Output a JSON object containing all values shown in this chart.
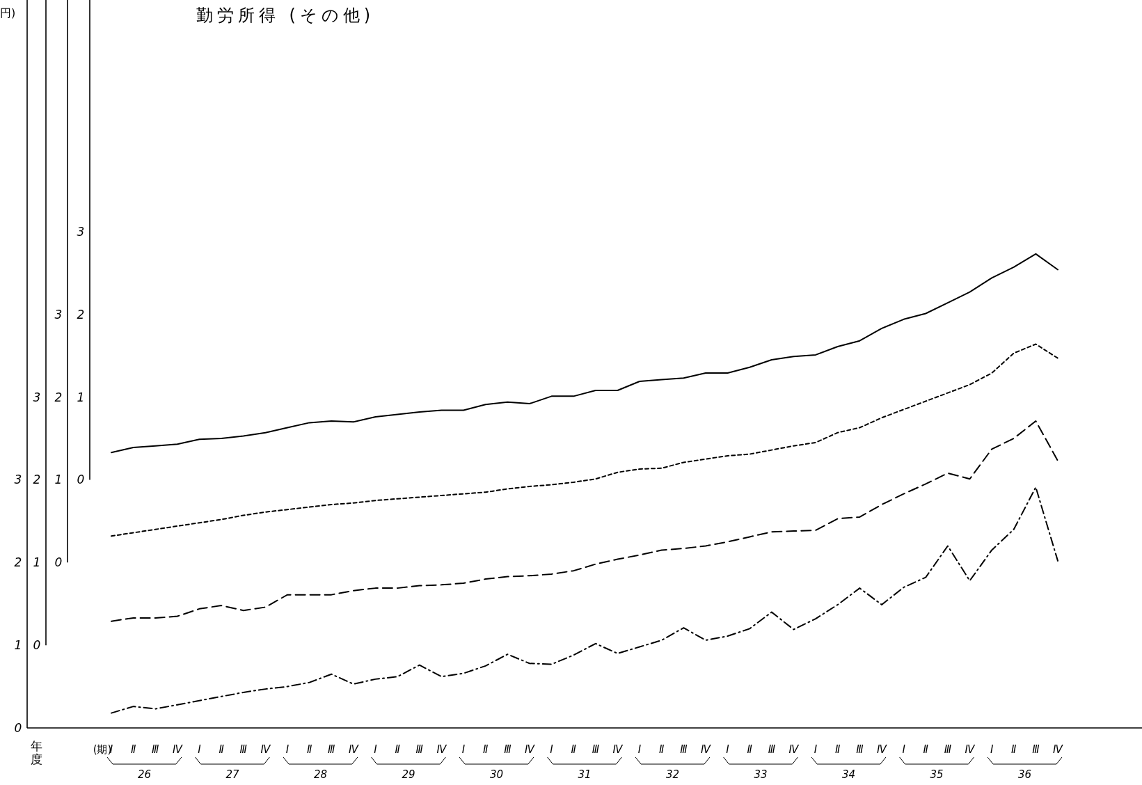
{
  "chart_data": [
    {
      "type": "line",
      "title": "勤労所得 (その他)",
      "xlabel": "年度",
      "ylabel": "円)",
      "categories": [
        "Ⅰ",
        "Ⅱ",
        "Ⅲ",
        "Ⅳ",
        "Ⅰ",
        "Ⅱ",
        "Ⅲ",
        "Ⅳ",
        "Ⅰ",
        "Ⅱ",
        "Ⅲ",
        "Ⅳ",
        "Ⅰ",
        "Ⅱ",
        "Ⅲ",
        "Ⅳ",
        "Ⅰ",
        "Ⅱ",
        "Ⅲ",
        "Ⅳ",
        "Ⅰ",
        "Ⅱ",
        "Ⅲ",
        "Ⅳ",
        "Ⅰ",
        "Ⅱ",
        "Ⅲ",
        "Ⅳ",
        "Ⅰ",
        "Ⅱ",
        "Ⅲ",
        "Ⅳ",
        "Ⅰ",
        "Ⅱ",
        "Ⅲ",
        "Ⅳ",
        "Ⅰ",
        "Ⅱ",
        "Ⅲ",
        "Ⅳ",
        "Ⅰ",
        "Ⅱ",
        "Ⅲ",
        "Ⅳ"
      ],
      "annotations": [
        "(期)",
        "26",
        "27",
        "28",
        "29",
        "30",
        "31",
        "32",
        "33",
        "34",
        "35",
        "36"
      ],
      "ylim": [
        0,
        8.8
      ],
      "yticks": [
        0,
        1,
        2,
        3
      ],
      "series": [
        {
          "color": "#000000",
          "line_style": "dashdot",
          "values": [
            0.18,
            0.26,
            0.23,
            0.28,
            0.33,
            0.38,
            0.43,
            0.47,
            0.5,
            0.55,
            0.65,
            0.53,
            0.59,
            0.62,
            0.76,
            0.62,
            0.66,
            0.75,
            0.89,
            0.78,
            0.77,
            0.88,
            1.02,
            0.9,
            0.98,
            1.06,
            1.21,
            1.06,
            1.11,
            1.2,
            1.4,
            1.19,
            1.32,
            1.49,
            1.69,
            1.49,
            1.7,
            1.82,
            2.2,
            1.78,
            2.15,
            2.4,
            2.91,
            2.02
          ]
        }
      ]
    },
    {
      "type": "line",
      "tick_labels": "y",
      "categories": [
        null,
        null,
        null,
        null,
        null,
        null,
        null,
        null,
        null,
        null,
        null,
        null,
        null,
        null,
        null,
        null,
        null,
        null,
        null,
        null,
        null,
        null,
        null,
        null,
        null,
        null,
        null,
        null,
        null,
        null,
        null,
        null,
        null,
        null,
        null,
        null,
        null,
        null,
        null,
        null,
        null,
        null,
        null,
        null
      ],
      "ylim": [
        0,
        7.8
      ],
      "yticks": [
        0,
        1,
        2,
        3
      ],
      "series": [
        {
          "color": "#000000",
          "line_style": "dashed",
          "values": [
            0.29,
            0.33,
            0.33,
            0.35,
            0.44,
            0.48,
            0.42,
            0.46,
            0.61,
            0.61,
            0.61,
            0.66,
            0.69,
            0.69,
            0.72,
            0.73,
            0.75,
            0.8,
            0.83,
            0.84,
            0.86,
            0.9,
            0.98,
            1.04,
            1.09,
            1.15,
            1.17,
            1.2,
            1.25,
            1.31,
            1.37,
            1.38,
            1.39,
            1.53,
            1.55,
            1.7,
            1.83,
            1.95,
            2.08,
            2.01,
            2.37,
            2.5,
            2.71,
            2.23
          ]
        }
      ]
    },
    {
      "type": "line",
      "tick_labels": "y",
      "categories": [
        null,
        null,
        null,
        null,
        null,
        null,
        null,
        null,
        null,
        null,
        null,
        null,
        null,
        null,
        null,
        null,
        null,
        null,
        null,
        null,
        null,
        null,
        null,
        null,
        null,
        null,
        null,
        null,
        null,
        null,
        null,
        null,
        null,
        null,
        null,
        null,
        null,
        null,
        null,
        null,
        null,
        null,
        null,
        null
      ],
      "ylim": [
        0,
        6.8
      ],
      "yticks": [
        0,
        1,
        2,
        3
      ],
      "series": [
        {
          "color": "#000000",
          "line_style": "dotted",
          "values": [
            0.32,
            0.36,
            0.4,
            0.44,
            0.48,
            0.52,
            0.57,
            0.61,
            0.64,
            0.67,
            0.7,
            0.72,
            0.75,
            0.77,
            0.79,
            0.81,
            0.83,
            0.85,
            0.89,
            0.92,
            0.94,
            0.97,
            1.01,
            1.09,
            1.13,
            1.14,
            1.21,
            1.25,
            1.29,
            1.31,
            1.36,
            1.41,
            1.45,
            1.57,
            1.63,
            1.75,
            1.85,
            1.95,
            2.05,
            2.15,
            2.29,
            2.53,
            2.64,
            2.47
          ]
        }
      ]
    },
    {
      "type": "line",
      "tick_labels": "y",
      "categories": [
        null,
        null,
        null,
        null,
        null,
        null,
        null,
        null,
        null,
        null,
        null,
        null,
        null,
        null,
        null,
        null,
        null,
        null,
        null,
        null,
        null,
        null,
        null,
        null,
        null,
        null,
        null,
        null,
        null,
        null,
        null,
        null,
        null,
        null,
        null,
        null,
        null,
        null,
        null,
        null,
        null,
        null,
        null,
        null
      ],
      "ylim": [
        0,
        5.8
      ],
      "yticks": [
        0,
        1,
        2,
        3
      ],
      "series": [
        {
          "color": "#000000",
          "line_style": "solid",
          "values": [
            0.33,
            0.39,
            0.41,
            0.43,
            0.49,
            0.5,
            0.53,
            0.57,
            0.63,
            0.69,
            0.71,
            0.7,
            0.76,
            0.79,
            0.82,
            0.84,
            0.84,
            0.91,
            0.94,
            0.92,
            1.01,
            1.01,
            1.08,
            1.08,
            1.19,
            1.21,
            1.23,
            1.29,
            1.29,
            1.36,
            1.45,
            1.49,
            1.51,
            1.61,
            1.68,
            1.83,
            1.94,
            2.01,
            2.14,
            2.27,
            2.44,
            2.57,
            2.73,
            2.54
          ]
        }
      ]
    }
  ]
}
